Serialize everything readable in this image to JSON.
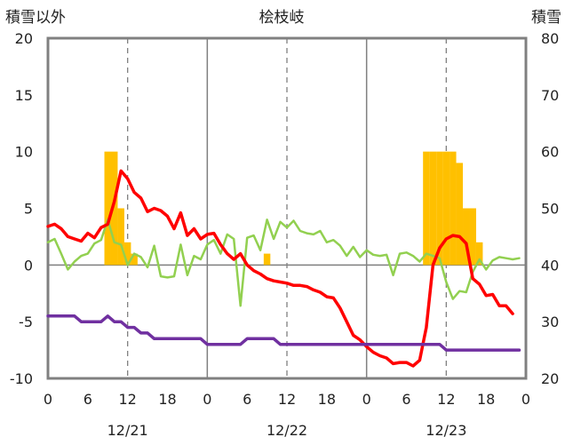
{
  "chart_data": {
    "type": "line",
    "title": "桧枝岐",
    "left_axis": {
      "label": "積雪以外",
      "range": [
        -10,
        20
      ],
      "ticks": [
        "20",
        "15",
        "10",
        "5",
        "0",
        "-5",
        "-10"
      ]
    },
    "right_axis": {
      "label": "積雪",
      "range": [
        20,
        80
      ],
      "ticks": [
        "80",
        "70",
        "60",
        "50",
        "40",
        "30",
        "20"
      ]
    },
    "x_ticks": [
      "0",
      "6",
      "12",
      "18",
      "0",
      "6",
      "12",
      "18",
      "0",
      "6",
      "12",
      "18",
      "0"
    ],
    "dates": [
      "12/21",
      "12/22",
      "12/23"
    ],
    "x_range_hours": [
      0,
      72
    ],
    "series": [
      {
        "color": "#FFC000",
        "kind": "bar",
        "axis": "left",
        "points": [
          [
            9,
            10
          ],
          [
            10,
            10
          ],
          [
            11,
            5
          ],
          [
            12,
            2
          ],
          [
            13,
            1
          ],
          [
            33,
            1
          ],
          [
            57,
            10
          ],
          [
            58,
            10
          ],
          [
            59,
            10
          ],
          [
            60,
            10
          ],
          [
            61,
            10
          ],
          [
            62,
            9
          ],
          [
            63,
            5
          ],
          [
            64,
            5
          ],
          [
            65,
            2
          ]
        ]
      },
      {
        "color": "#92D050",
        "kind": "line",
        "axis": "left",
        "points": [
          [
            0,
            2
          ],
          [
            1,
            2.3
          ],
          [
            2,
            1
          ],
          [
            3,
            -0.4
          ],
          [
            4,
            0.3
          ],
          [
            5,
            0.8
          ],
          [
            6,
            1
          ],
          [
            7,
            1.9
          ],
          [
            8,
            2.2
          ],
          [
            9,
            4
          ],
          [
            10,
            2
          ],
          [
            11,
            1.8
          ],
          [
            12,
            0
          ],
          [
            13,
            1
          ],
          [
            14,
            0.7
          ],
          [
            15,
            -0.2
          ],
          [
            16,
            1.7
          ],
          [
            17,
            -1
          ],
          [
            18,
            -1.1
          ],
          [
            19,
            -1
          ],
          [
            20,
            1.8
          ],
          [
            21,
            -0.9
          ],
          [
            22,
            0.8
          ],
          [
            23,
            0.5
          ],
          [
            24,
            1.8
          ],
          [
            25,
            2.2
          ],
          [
            26,
            1
          ],
          [
            27,
            2.7
          ],
          [
            28,
            2.3
          ],
          [
            29,
            -3.6
          ],
          [
            30,
            2.4
          ],
          [
            31,
            2.6
          ],
          [
            32,
            1.3
          ],
          [
            33,
            4
          ],
          [
            34,
            2.3
          ],
          [
            35,
            3.8
          ],
          [
            36,
            3.3
          ],
          [
            37,
            3.9
          ],
          [
            38,
            3
          ],
          [
            39,
            2.8
          ],
          [
            40,
            2.7
          ],
          [
            41,
            3
          ],
          [
            42,
            2
          ],
          [
            43,
            2.2
          ],
          [
            44,
            1.7
          ],
          [
            45,
            0.8
          ],
          [
            46,
            1.6
          ],
          [
            47,
            0.7
          ],
          [
            48,
            1.3
          ],
          [
            49,
            0.9
          ],
          [
            50,
            0.8
          ],
          [
            51,
            0.9
          ],
          [
            52,
            -0.9
          ],
          [
            53,
            1
          ],
          [
            54,
            1.1
          ],
          [
            55,
            0.8
          ],
          [
            56,
            0.3
          ],
          [
            57,
            1
          ],
          [
            58,
            0.8
          ],
          [
            59,
            0.6
          ],
          [
            60,
            -1.5
          ],
          [
            61,
            -3
          ],
          [
            62,
            -2.3
          ],
          [
            63,
            -2.4
          ],
          [
            64,
            -0.6
          ],
          [
            65,
            0.5
          ],
          [
            66,
            -0.4
          ],
          [
            67,
            0.4
          ],
          [
            68,
            0.7
          ],
          [
            69,
            0.6
          ],
          [
            70,
            0.5
          ],
          [
            71,
            0.6
          ]
        ]
      },
      {
        "color": "#FF0000",
        "kind": "line",
        "axis": "left",
        "points": [
          [
            0,
            3.4
          ],
          [
            1,
            3.6
          ],
          [
            2,
            3.2
          ],
          [
            3,
            2.5
          ],
          [
            4,
            2.3
          ],
          [
            5,
            2.1
          ],
          [
            6,
            2.8
          ],
          [
            7,
            2.4
          ],
          [
            8,
            3.3
          ],
          [
            9,
            3.6
          ],
          [
            10,
            5.6
          ],
          [
            11,
            8.3
          ],
          [
            12,
            7.6
          ],
          [
            13,
            6.4
          ],
          [
            14,
            5.9
          ],
          [
            15,
            4.7
          ],
          [
            16,
            5
          ],
          [
            17,
            4.8
          ],
          [
            18,
            4.3
          ],
          [
            19,
            3.2
          ],
          [
            20,
            4.6
          ],
          [
            21,
            2.6
          ],
          [
            22,
            3.2
          ],
          [
            23,
            2.3
          ],
          [
            24,
            2.7
          ],
          [
            25,
            2.8
          ],
          [
            26,
            1.8
          ],
          [
            27,
            1
          ],
          [
            28,
            0.5
          ],
          [
            29,
            1
          ],
          [
            30,
            0
          ],
          [
            31,
            -0.5
          ],
          [
            32,
            -0.8
          ],
          [
            33,
            -1.2
          ],
          [
            34,
            -1.4
          ],
          [
            35,
            -1.5
          ],
          [
            36,
            -1.6
          ],
          [
            37,
            -1.8
          ],
          [
            38,
            -1.8
          ],
          [
            39,
            -1.9
          ],
          [
            40,
            -2.2
          ],
          [
            41,
            -2.4
          ],
          [
            42,
            -2.8
          ],
          [
            43,
            -2.9
          ],
          [
            44,
            -3.8
          ],
          [
            45,
            -5
          ],
          [
            46,
            -6.2
          ],
          [
            47,
            -6.6
          ],
          [
            48,
            -7.2
          ],
          [
            49,
            -7.7
          ],
          [
            50,
            -8
          ],
          [
            51,
            -8.2
          ],
          [
            52,
            -8.7
          ],
          [
            53,
            -8.6
          ],
          [
            54,
            -8.6
          ],
          [
            55,
            -8.9
          ],
          [
            56,
            -8.4
          ],
          [
            57,
            -5.5
          ],
          [
            58,
            0
          ],
          [
            59,
            1.5
          ],
          [
            60,
            2.3
          ],
          [
            61,
            2.6
          ],
          [
            62,
            2.5
          ],
          [
            63,
            1.9
          ],
          [
            64,
            -1.2
          ],
          [
            65,
            -1.7
          ],
          [
            66,
            -2.7
          ],
          [
            67,
            -2.6
          ],
          [
            68,
            -3.6
          ],
          [
            69,
            -3.6
          ],
          [
            70,
            -4.3
          ]
        ]
      },
      {
        "color": "#7030A0",
        "kind": "line",
        "axis": "right",
        "points": [
          [
            0,
            31
          ],
          [
            1,
            31
          ],
          [
            2,
            31
          ],
          [
            3,
            31
          ],
          [
            4,
            31
          ],
          [
            5,
            30
          ],
          [
            6,
            30
          ],
          [
            7,
            30
          ],
          [
            8,
            30
          ],
          [
            9,
            31
          ],
          [
            10,
            30
          ],
          [
            11,
            30
          ],
          [
            12,
            29
          ],
          [
            13,
            29
          ],
          [
            14,
            28
          ],
          [
            15,
            28
          ],
          [
            16,
            27
          ],
          [
            17,
            27
          ],
          [
            18,
            27
          ],
          [
            19,
            27
          ],
          [
            20,
            27
          ],
          [
            21,
            27
          ],
          [
            22,
            27
          ],
          [
            23,
            27
          ],
          [
            24,
            26
          ],
          [
            25,
            26
          ],
          [
            26,
            26
          ],
          [
            27,
            26
          ],
          [
            28,
            26
          ],
          [
            29,
            26
          ],
          [
            30,
            27
          ],
          [
            31,
            27
          ],
          [
            32,
            27
          ],
          [
            33,
            27
          ],
          [
            34,
            27
          ],
          [
            35,
            26
          ],
          [
            36,
            26
          ],
          [
            37,
            26
          ],
          [
            38,
            26
          ],
          [
            39,
            26
          ],
          [
            40,
            26
          ],
          [
            41,
            26
          ],
          [
            42,
            26
          ],
          [
            43,
            26
          ],
          [
            44,
            26
          ],
          [
            45,
            26
          ],
          [
            46,
            26
          ],
          [
            47,
            26
          ],
          [
            48,
            26
          ],
          [
            49,
            26
          ],
          [
            50,
            26
          ],
          [
            51,
            26
          ],
          [
            52,
            26
          ],
          [
            53,
            26
          ],
          [
            54,
            26
          ],
          [
            55,
            26
          ],
          [
            56,
            26
          ],
          [
            57,
            26
          ],
          [
            58,
            26
          ],
          [
            59,
            26
          ],
          [
            60,
            25
          ],
          [
            61,
            25
          ],
          [
            62,
            25
          ],
          [
            63,
            25
          ],
          [
            64,
            25
          ],
          [
            65,
            25
          ],
          [
            66,
            25
          ],
          [
            67,
            25
          ],
          [
            68,
            25
          ],
          [
            69,
            25
          ],
          [
            70,
            25
          ],
          [
            71,
            25
          ]
        ]
      }
    ],
    "grid": {
      "x_dashed_at_hours": [
        12,
        36,
        60
      ],
      "x_solid_at_hours": [
        24,
        48
      ],
      "y_zero_line": true
    }
  }
}
